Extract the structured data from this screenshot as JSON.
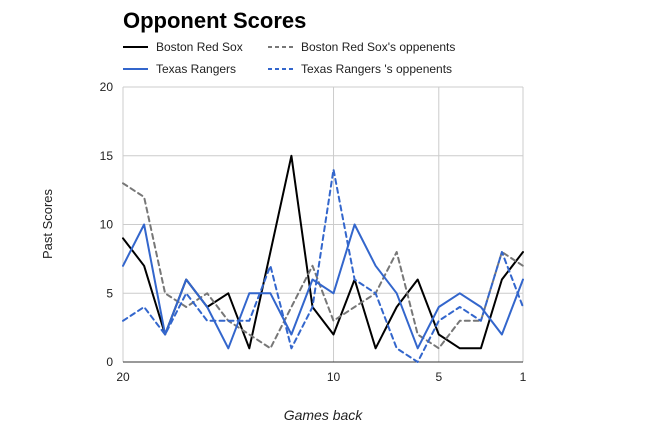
{
  "chart_data": {
    "type": "line",
    "title": "Opponent Scores",
    "xlabel": "Games back",
    "ylabel": "Past Scores",
    "xlim": [
      20,
      1
    ],
    "ylim": [
      0,
      20
    ],
    "x_ticks": [
      20,
      10,
      5,
      1
    ],
    "y_ticks": [
      0,
      5,
      10,
      15,
      20
    ],
    "grid": true,
    "legend_position": "top",
    "x": [
      20,
      19,
      18,
      17,
      16,
      15,
      14,
      13,
      12,
      11,
      10,
      9,
      8,
      7,
      6,
      5,
      4,
      3,
      2,
      1
    ],
    "series": [
      {
        "name": "Boston Red Sox",
        "color": "#000000",
        "dash": "solid",
        "values": [
          9,
          7,
          2,
          6,
          4,
          5,
          1,
          8,
          15,
          4,
          2,
          6,
          1,
          4,
          6,
          2,
          1,
          1,
          6,
          8
        ]
      },
      {
        "name": "Boston Red Sox's oppenents",
        "color": "#777777",
        "dash": "dashed",
        "values": [
          13,
          12,
          5,
          4,
          5,
          3,
          2,
          1,
          4,
          7,
          3,
          4,
          5,
          8,
          2,
          1,
          3,
          3,
          8,
          7
        ]
      },
      {
        "name": "Texas Rangers",
        "color": "#3366cc",
        "dash": "solid",
        "values": [
          7,
          10,
          2,
          6,
          4,
          1,
          5,
          5,
          2,
          6,
          5,
          10,
          7,
          5,
          1,
          4,
          5,
          4,
          2,
          6
        ]
      },
      {
        "name": "Texas Rangers 's oppenents",
        "color": "#3366cc",
        "dash": "dashed",
        "values": [
          3,
          4,
          2,
          5,
          3,
          3,
          3,
          7,
          1,
          4,
          14,
          6,
          5,
          1,
          0,
          3,
          4,
          3,
          8,
          4
        ]
      }
    ]
  }
}
